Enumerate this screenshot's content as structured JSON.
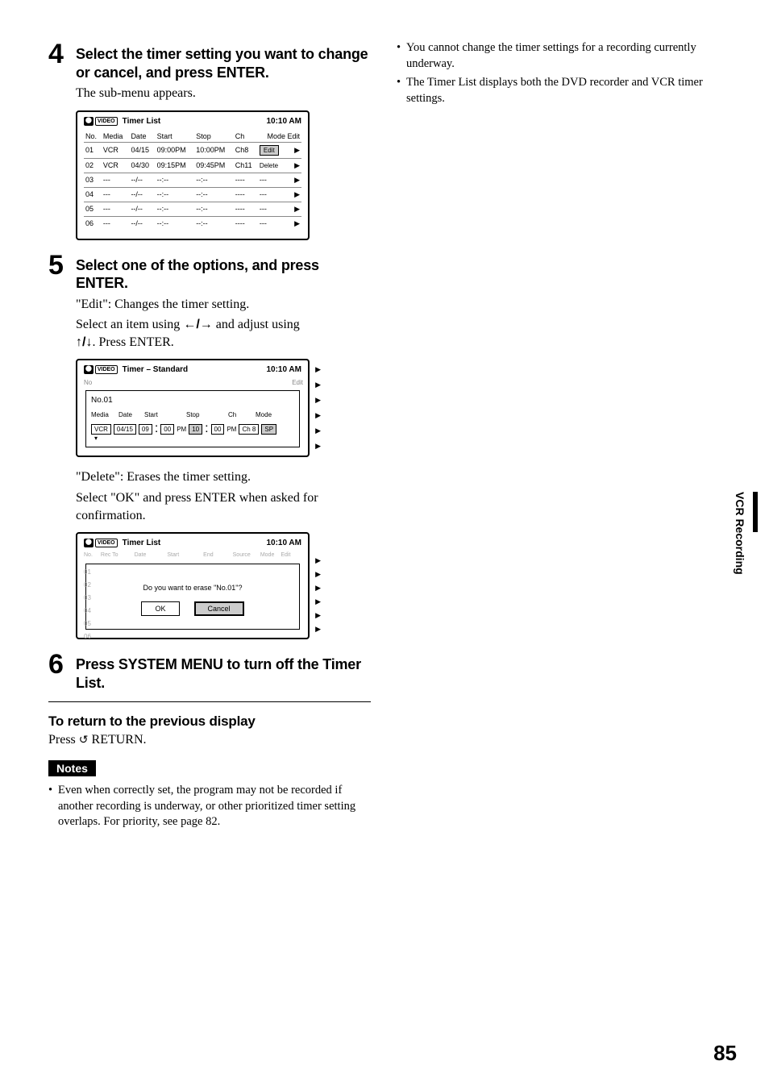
{
  "side_tab": "VCR Recording",
  "page_number": "85",
  "step4": {
    "num": "4",
    "title": "Select the timer setting you want to change or cancel, and press ENTER.",
    "text": "The sub-menu appears."
  },
  "step5": {
    "num": "5",
    "title": "Select one of the options, and press ENTER.",
    "line1": "\"Edit\": Changes the timer setting.",
    "line2a": "Select an item using ",
    "line2b": " and adjust using ",
    "line3": ". Press ENTER.",
    "delete_line1": "\"Delete\": Erases the timer setting.",
    "delete_line2": "Select \"OK\" and press ENTER when asked for confirmation."
  },
  "step6": {
    "num": "6",
    "title": "Press SYSTEM MENU to turn off the Timer List."
  },
  "return_h": "To return to the previous display",
  "return_text_a": "Press ",
  "return_text_b": " RETURN.",
  "notes_label": "Notes",
  "notes": [
    "Even when correctly set, the program may not be recorded if another recording is underway, or other prioritized timer setting overlaps. For priority, see page 82.",
    "You cannot change the timer settings for a recording currently underway.",
    "The Timer List displays both the DVD recorder and VCR timer settings."
  ],
  "panel_time": "10:10 AM",
  "panel1": {
    "title": "Timer List",
    "cols": [
      "No.",
      "Media",
      "Date",
      "Start",
      "Stop",
      "Ch",
      "Mode",
      "Edit"
    ],
    "rows": [
      {
        "no": "01",
        "media": "VCR",
        "date": "04/15",
        "start": "09:00PM",
        "stop": "10:00PM",
        "ch": "Ch8",
        "mode": "Edit",
        "sel": true
      },
      {
        "no": "02",
        "media": "VCR",
        "date": "04/30",
        "start": "09:15PM",
        "stop": "09:45PM",
        "ch": "Ch11",
        "mode": "Delete",
        "sel": false
      },
      {
        "no": "03",
        "media": "---",
        "date": "--/--",
        "start": "--:--",
        "stop": "--:--",
        "ch": "----",
        "mode": "---",
        "sel": false
      },
      {
        "no": "04",
        "media": "---",
        "date": "--/--",
        "start": "--:--",
        "stop": "--:--",
        "ch": "----",
        "mode": "---",
        "sel": false
      },
      {
        "no": "05",
        "media": "---",
        "date": "--/--",
        "start": "--:--",
        "stop": "--:--",
        "ch": "----",
        "mode": "---",
        "sel": false
      },
      {
        "no": "06",
        "media": "---",
        "date": "--/--",
        "start": "--:--",
        "stop": "--:--",
        "ch": "----",
        "mode": "---",
        "sel": false
      }
    ]
  },
  "panel2": {
    "title": "Timer – Standard",
    "overlay_no": "No.01",
    "edit_label": "Edit",
    "hdrs": [
      "Media",
      "Date",
      "Start",
      "Stop",
      "Ch",
      "Mode"
    ],
    "vals": {
      "media": "VCR",
      "date": "04/15",
      "sh": "09",
      "sm": "00",
      "sap": "PM",
      "eh": "10",
      "em": "00",
      "eap": "PM",
      "ch": "Ch 8",
      "mode": "SP"
    }
  },
  "panel3": {
    "title": "Timer List",
    "ghost_cols": [
      "No.",
      "Rec To",
      "Date",
      "Start",
      "End",
      "Source",
      "Mode",
      "Edit"
    ],
    "ghost_nos": [
      "01",
      "02",
      "03",
      "04",
      "05",
      "06"
    ],
    "dialog_text": "Do you want to erase \"No.01\"?",
    "ok": "OK",
    "cancel": "Cancel"
  },
  "icons": {
    "lr": "←/→",
    "ud": "↑/↓",
    "return": "↺"
  }
}
